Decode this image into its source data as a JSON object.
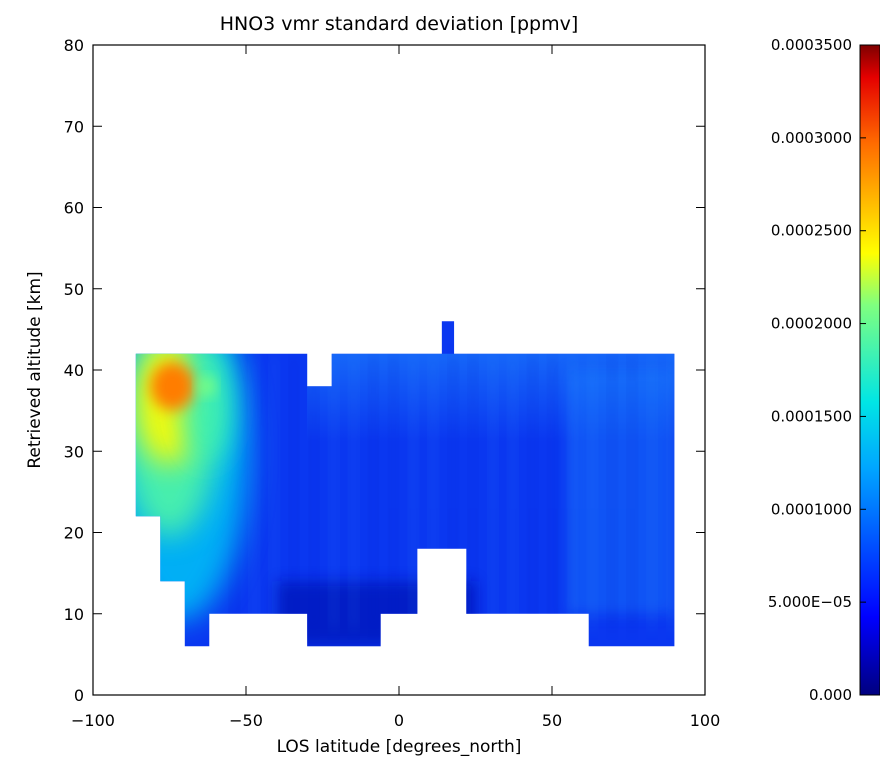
{
  "chart_data": {
    "type": "heatmap",
    "title": "HNO3 vmr standard deviation [ppmv]",
    "xlabel": "LOS latitude [degrees_north]",
    "ylabel": "Retrieved altitude [km]",
    "xlim": [
      -100,
      100
    ],
    "ylim": [
      0,
      80
    ],
    "x_ticks": [
      -100,
      -50,
      0,
      50,
      100
    ],
    "x_tick_labels": [
      "−100",
      "−50",
      "0",
      "50",
      "100"
    ],
    "y_ticks": [
      0,
      10,
      20,
      30,
      40,
      50,
      60,
      70,
      80
    ],
    "y_tick_labels": [
      "0",
      "10",
      "20",
      "30",
      "40",
      "50",
      "60",
      "70",
      "80"
    ],
    "colorbar": {
      "min": 0,
      "max": 0.00035,
      "colormap": "rainbow (dark blue to dark red)",
      "ticks": [
        0,
        5e-05,
        0.0001,
        0.00015,
        0.0002,
        0.00025,
        0.0003,
        0.00035
      ],
      "tick_labels": [
        "0.000",
        "5.000E−05",
        "0.0001000",
        "0.0001500",
        "0.0002000",
        "0.0002500",
        "0.0003000",
        "0.0003500"
      ]
    },
    "grid": false,
    "columns": [
      {
        "lat_range": [
          -86,
          -78
        ],
        "alt_range": [
          22,
          42
        ]
      },
      {
        "lat_range": [
          -78,
          -70
        ],
        "alt_range": [
          14,
          42
        ]
      },
      {
        "lat_range": [
          -70,
          -62
        ],
        "alt_range": [
          6,
          42
        ]
      },
      {
        "lat_range": [
          -62,
          -30
        ],
        "alt_range": [
          10,
          42
        ]
      },
      {
        "lat_range": [
          -30,
          -22
        ],
        "alt_range": [
          6,
          38
        ]
      },
      {
        "lat_range": [
          -22,
          -6
        ],
        "alt_range": [
          6,
          42
        ]
      },
      {
        "lat_range": [
          -6,
          6
        ],
        "alt_range": [
          10,
          42
        ]
      },
      {
        "lat_range": [
          6,
          14
        ],
        "alt_range": [
          18,
          42
        ]
      },
      {
        "lat_range": [
          14,
          18
        ],
        "alt_range": [
          18,
          46
        ]
      },
      {
        "lat_range": [
          18,
          22
        ],
        "alt_range": [
          18,
          42
        ]
      },
      {
        "lat_range": [
          22,
          62
        ],
        "alt_range": [
          10,
          42
        ]
      },
      {
        "lat_range": [
          62,
          90
        ],
        "alt_range": [
          6,
          42
        ]
      }
    ],
    "hotspots": [
      {
        "lat": -74,
        "alt": 38,
        "value": 0.00029
      },
      {
        "lat": -63,
        "alt": 38,
        "value": 0.00021
      }
    ]
  }
}
